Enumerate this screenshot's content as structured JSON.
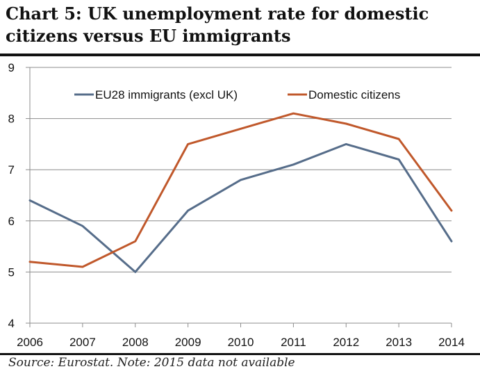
{
  "chart_data": {
    "type": "line",
    "title": "Chart 5: UK unemployment rate for domestic citizens versus EU immigrants",
    "source": "Source: Eurostat. Note: 2015 data not available",
    "xlabel": "",
    "ylabel": "",
    "categories": [
      "2006",
      "2007",
      "2008",
      "2009",
      "2010",
      "2011",
      "2012",
      "2013",
      "2014"
    ],
    "ylim": [
      4,
      9
    ],
    "yticks": [
      "4",
      "5",
      "6",
      "7",
      "8",
      "9"
    ],
    "grid": true,
    "legend": "top",
    "series": [
      {
        "name": "EU28 immigrants (excl UK)",
        "color": "#566d8a",
        "values": [
          6.4,
          5.9,
          5.0,
          6.2,
          6.8,
          7.1,
          7.5,
          7.2,
          5.6
        ]
      },
      {
        "name": "Domestic citizens",
        "color": "#c0582b",
        "values": [
          5.2,
          5.1,
          5.6,
          7.5,
          7.8,
          8.1,
          7.9,
          7.6,
          6.2
        ]
      }
    ]
  }
}
